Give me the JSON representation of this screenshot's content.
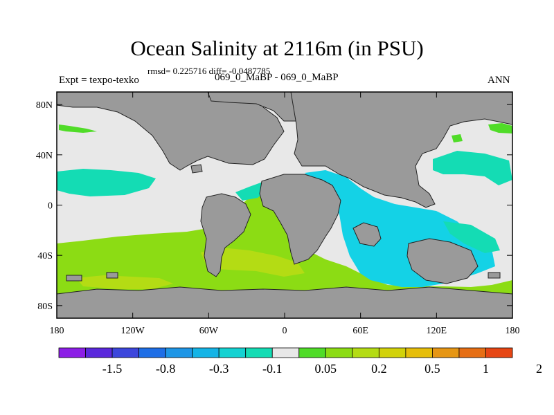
{
  "title": "Ocean Salinity at 2116m (in PSU)",
  "stats": "rmsd= 0.225716 diff= -0.0487785",
  "experiment": "Expt = texpo-texko",
  "cases": "069_0_MaBP - 069_0_MaBP",
  "season": "ANN",
  "axes": {
    "x_ticks": [
      "180",
      "120W",
      "60W",
      "0",
      "60E",
      "120E",
      "180"
    ],
    "y_ticks": [
      "80N",
      "40N",
      "0",
      "40S",
      "80S"
    ]
  },
  "colorbar": {
    "colors": [
      "#8c1ee6",
      "#5a28dc",
      "#3c46dc",
      "#1e6ee6",
      "#1e96e6",
      "#14b4e6",
      "#14d2d2",
      "#14dcb4",
      "#e8e8e8",
      "#50dc28",
      "#8cdc14",
      "#b4dc14",
      "#d2d20a",
      "#e6be0a",
      "#e69614",
      "#e66e14",
      "#e64614"
    ],
    "labels": [
      "-1.5",
      "-0.8",
      "-0.3",
      "-0.1",
      "0.05",
      "0.2",
      "0.5",
      "1",
      "2"
    ]
  },
  "colors": {
    "land": "#9a9a9a",
    "near_zero": "#e8e8e8",
    "teal": "#14dcb4",
    "cyan": "#14d2e6",
    "green": "#8cdc14",
    "light_green": "#50dc28",
    "yellow_green": "#b4dc14",
    "blue": "#3c46dc"
  }
}
